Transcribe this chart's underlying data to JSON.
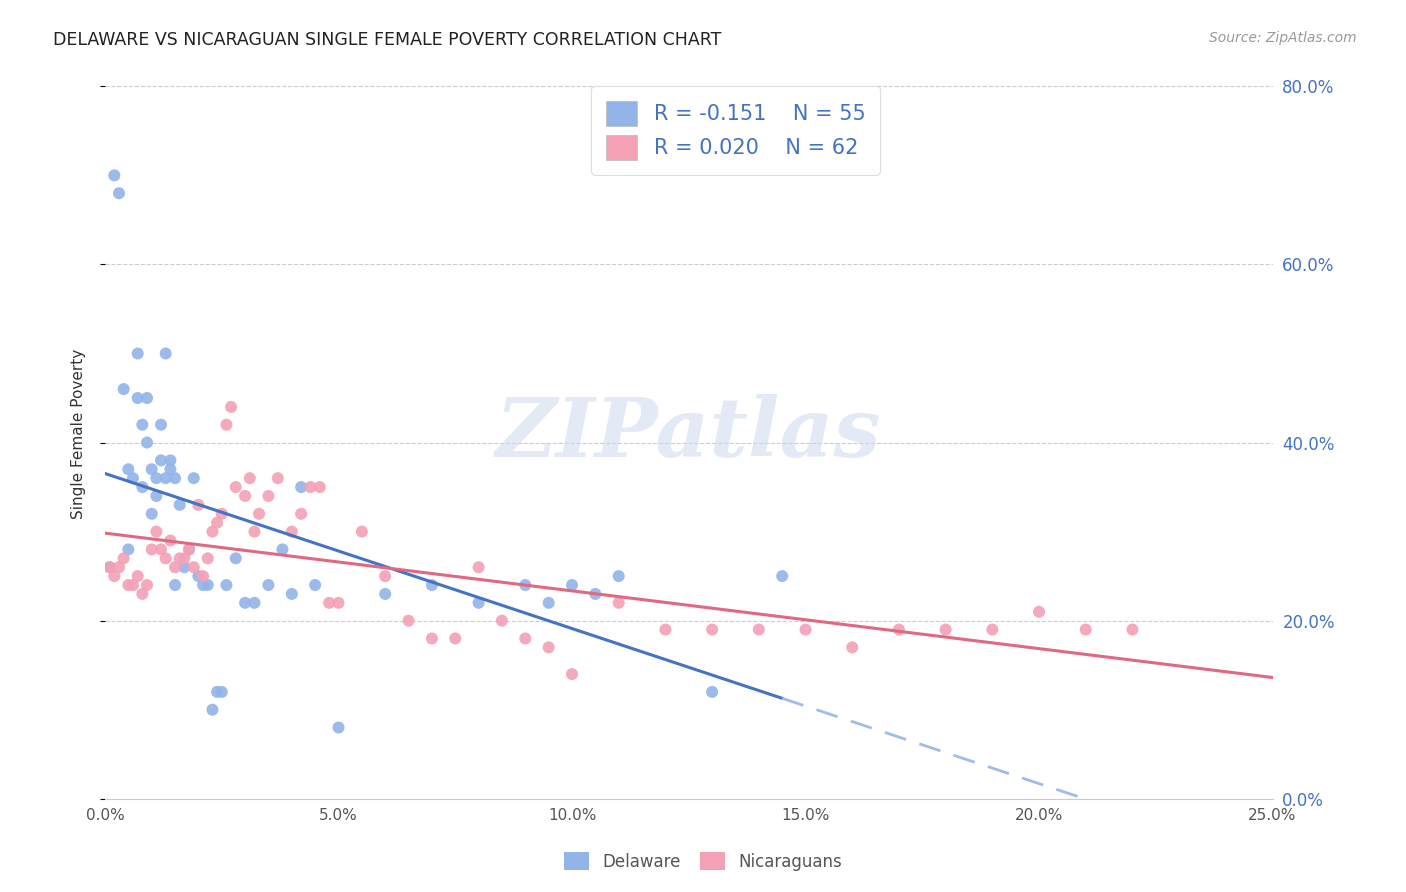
{
  "title": "DELAWARE VS NICARAGUAN SINGLE FEMALE POVERTY CORRELATION CHART",
  "source": "Source: ZipAtlas.com",
  "ylabel": "Single Female Poverty",
  "legend_R_del": "-0.151",
  "legend_N_del": "55",
  "legend_R_nic": "0.020",
  "legend_N_nic": "62",
  "color_delaware": "#92b4e8",
  "color_nicaraguans": "#f4a0b5",
  "color_text_blue": "#4472c4",
  "color_line_delaware": "#4472c4",
  "color_line_nicaraguans": "#e06880",
  "color_line_del_dash": "#a0bce8",
  "xmin": 0.0,
  "xmax": 0.25,
  "ymin": 0.0,
  "ymax": 0.82,
  "yticks": [
    0.0,
    0.2,
    0.4,
    0.6,
    0.8
  ],
  "xticks": [
    0.0,
    0.05,
    0.1,
    0.15,
    0.2,
    0.25
  ],
  "watermark": "ZIPatlas",
  "delaware_x": [
    0.001,
    0.002,
    0.003,
    0.004,
    0.005,
    0.005,
    0.006,
    0.007,
    0.007,
    0.008,
    0.008,
    0.009,
    0.009,
    0.01,
    0.01,
    0.011,
    0.011,
    0.012,
    0.012,
    0.013,
    0.013,
    0.014,
    0.014,
    0.015,
    0.015,
    0.016,
    0.017,
    0.018,
    0.019,
    0.02,
    0.021,
    0.022,
    0.023,
    0.024,
    0.025,
    0.026,
    0.028,
    0.03,
    0.032,
    0.035,
    0.038,
    0.04,
    0.042,
    0.045,
    0.05,
    0.06,
    0.07,
    0.08,
    0.09,
    0.095,
    0.1,
    0.105,
    0.11,
    0.13,
    0.145
  ],
  "delaware_y": [
    0.26,
    0.7,
    0.68,
    0.46,
    0.28,
    0.37,
    0.36,
    0.5,
    0.45,
    0.35,
    0.42,
    0.4,
    0.45,
    0.37,
    0.32,
    0.34,
    0.36,
    0.38,
    0.42,
    0.5,
    0.36,
    0.37,
    0.38,
    0.24,
    0.36,
    0.33,
    0.26,
    0.28,
    0.36,
    0.25,
    0.24,
    0.24,
    0.1,
    0.12,
    0.12,
    0.24,
    0.27,
    0.22,
    0.22,
    0.24,
    0.28,
    0.23,
    0.35,
    0.24,
    0.08,
    0.23,
    0.24,
    0.22,
    0.24,
    0.22,
    0.24,
    0.23,
    0.25,
    0.12,
    0.25
  ],
  "nicaraguans_x": [
    0.001,
    0.002,
    0.003,
    0.004,
    0.005,
    0.006,
    0.007,
    0.008,
    0.009,
    0.01,
    0.011,
    0.012,
    0.013,
    0.014,
    0.015,
    0.016,
    0.017,
    0.018,
    0.019,
    0.02,
    0.021,
    0.022,
    0.023,
    0.024,
    0.025,
    0.026,
    0.027,
    0.028,
    0.03,
    0.031,
    0.032,
    0.033,
    0.035,
    0.037,
    0.04,
    0.042,
    0.044,
    0.046,
    0.048,
    0.05,
    0.055,
    0.06,
    0.065,
    0.07,
    0.075,
    0.08,
    0.085,
    0.09,
    0.095,
    0.1,
    0.11,
    0.12,
    0.13,
    0.14,
    0.15,
    0.16,
    0.17,
    0.18,
    0.19,
    0.2,
    0.21,
    0.22
  ],
  "nicaraguans_y": [
    0.26,
    0.25,
    0.26,
    0.27,
    0.24,
    0.24,
    0.25,
    0.23,
    0.24,
    0.28,
    0.3,
    0.28,
    0.27,
    0.29,
    0.26,
    0.27,
    0.27,
    0.28,
    0.26,
    0.33,
    0.25,
    0.27,
    0.3,
    0.31,
    0.32,
    0.42,
    0.44,
    0.35,
    0.34,
    0.36,
    0.3,
    0.32,
    0.34,
    0.36,
    0.3,
    0.32,
    0.35,
    0.35,
    0.22,
    0.22,
    0.3,
    0.25,
    0.2,
    0.18,
    0.18,
    0.26,
    0.2,
    0.18,
    0.17,
    0.14,
    0.22,
    0.19,
    0.19,
    0.19,
    0.19,
    0.17,
    0.19,
    0.19,
    0.19,
    0.21,
    0.19,
    0.19
  ]
}
